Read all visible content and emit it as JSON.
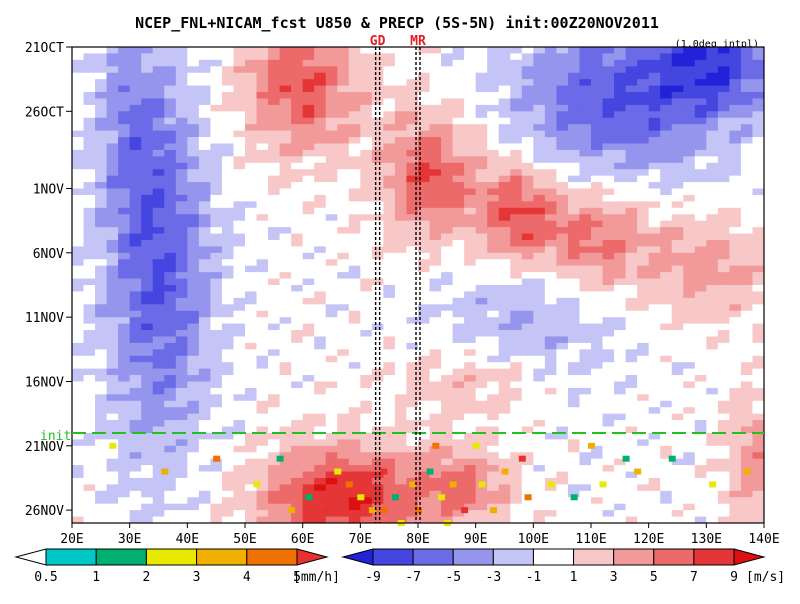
{
  "chart_data": {
    "type": "heatmap",
    "title": "NCEP_FNL+NICAM_fcst U850 & PRECP (5S-5N) init:00Z20NOV2011",
    "subtitle": "(1.0deg intpl)",
    "x_ticks": [
      "20E",
      "30E",
      "40E",
      "50E",
      "60E",
      "70E",
      "80E",
      "90E",
      "100E",
      "110E",
      "120E",
      "130E",
      "140E"
    ],
    "x_values": [
      20,
      30,
      40,
      50,
      60,
      70,
      80,
      90,
      100,
      110,
      120,
      130,
      140
    ],
    "xlim": [
      20,
      140
    ],
    "y_ticks": [
      "21OCT",
      "26OCT",
      "1NOV",
      "6NOV",
      "11NOV",
      "16NOV",
      "21NOV",
      "26NOV"
    ],
    "y_values": [
      0,
      5,
      11,
      16,
      21,
      26,
      31,
      36
    ],
    "ylim": [
      0,
      37
    ],
    "init_label": "init",
    "init_day": 30,
    "markers": [
      {
        "label": "GD",
        "lon": 73
      },
      {
        "label": "MR",
        "lon": 80
      }
    ],
    "u850": {
      "levels": [
        -9,
        -7,
        -5,
        -3,
        -1,
        1,
        3,
        5,
        7,
        9
      ],
      "labels": [
        "-9",
        "-7",
        "-5",
        "-3",
        "-1",
        "1",
        "3",
        "5",
        "7",
        "9"
      ],
      "unit": "[m/s]",
      "colors": [
        "#2222d8",
        "#4545e0",
        "#6b6be8",
        "#9595ee",
        "#c4c4f6",
        "#ffffff",
        "#f8c8c8",
        "#f29a9a",
        "#ec6a6a",
        "#e43636",
        "#dc1010"
      ],
      "fields": [
        {
          "lon": 35,
          "day": 17,
          "amp": -7,
          "sl": 9,
          "sd": 14
        },
        {
          "lon": 30,
          "day": 5,
          "amp": -3,
          "sl": 6,
          "sd": 8
        },
        {
          "lon": 115,
          "day": 4,
          "amp": -7,
          "sl": 18,
          "sd": 6
        },
        {
          "lon": 132,
          "day": 1,
          "amp": -7,
          "sl": 10,
          "sd": 4
        },
        {
          "lon": 100,
          "day": 21,
          "amp": -3,
          "sl": 16,
          "sd": 6
        },
        {
          "lon": 60,
          "day": 3,
          "amp": 7,
          "sl": 10,
          "sd": 5
        },
        {
          "lon": 82,
          "day": 10,
          "amp": 7,
          "sl": 8,
          "sd": 5
        },
        {
          "lon": 97,
          "day": 13,
          "amp": 7,
          "sl": 7,
          "sd": 4
        },
        {
          "lon": 110,
          "day": 15,
          "amp": 6,
          "sl": 10,
          "sd": 4
        },
        {
          "lon": 130,
          "day": 17,
          "amp": 4,
          "sl": 12,
          "sd": 4
        },
        {
          "lon": 67,
          "day": 35,
          "amp": 9,
          "sl": 14,
          "sd": 4
        },
        {
          "lon": 88,
          "day": 34,
          "amp": 5,
          "sl": 8,
          "sd": 3
        },
        {
          "lon": 138,
          "day": 32,
          "amp": 4,
          "sl": 5,
          "sd": 5
        },
        {
          "lon": 90,
          "day": 26,
          "amp": 3,
          "sl": 14,
          "sd": 3
        }
      ]
    },
    "precip": {
      "levels": [
        0.5,
        1,
        2,
        3,
        4,
        5
      ],
      "labels": [
        "0.5",
        "1",
        "2",
        "3",
        "4",
        "5"
      ],
      "unit": "[mm/h]",
      "colors": [
        "#ffffff",
        "#00c8c8",
        "#00b070",
        "#e8e800",
        "#f0b000",
        "#f07000",
        "#e83030"
      ],
      "points": [
        {
          "lon": 27,
          "day": 31,
          "v": 2
        },
        {
          "lon": 36,
          "day": 33,
          "v": 3
        },
        {
          "lon": 45,
          "day": 32,
          "v": 4
        },
        {
          "lon": 52,
          "day": 34,
          "v": 2
        },
        {
          "lon": 58,
          "day": 36,
          "v": 3
        },
        {
          "lon": 61,
          "day": 35,
          "v": 1
        },
        {
          "lon": 64,
          "day": 36,
          "v": 5
        },
        {
          "lon": 68,
          "day": 34,
          "v": 4
        },
        {
          "lon": 70,
          "day": 35,
          "v": 2
        },
        {
          "lon": 72,
          "day": 36,
          "v": 3
        },
        {
          "lon": 74,
          "day": 33,
          "v": 5
        },
        {
          "lon": 76,
          "day": 35,
          "v": 1
        },
        {
          "lon": 77,
          "day": 37,
          "v": 2
        },
        {
          "lon": 79,
          "day": 34,
          "v": 3
        },
        {
          "lon": 80,
          "day": 36,
          "v": 4
        },
        {
          "lon": 82,
          "day": 33,
          "v": 1
        },
        {
          "lon": 84,
          "day": 35,
          "v": 2
        },
        {
          "lon": 86,
          "day": 34,
          "v": 3
        },
        {
          "lon": 88,
          "day": 36,
          "v": 5
        },
        {
          "lon": 91,
          "day": 34,
          "v": 2
        },
        {
          "lon": 95,
          "day": 33,
          "v": 3
        },
        {
          "lon": 99,
          "day": 35,
          "v": 4
        },
        {
          "lon": 103,
          "day": 34,
          "v": 2
        },
        {
          "lon": 107,
          "day": 35,
          "v": 1
        },
        {
          "lon": 112,
          "day": 34,
          "v": 2
        },
        {
          "lon": 118,
          "day": 33,
          "v": 3
        },
        {
          "lon": 124,
          "day": 32,
          "v": 1
        },
        {
          "lon": 131,
          "day": 34,
          "v": 2
        },
        {
          "lon": 137,
          "day": 33,
          "v": 3
        },
        {
          "lon": 83,
          "day": 31,
          "v": 4
        },
        {
          "lon": 90,
          "day": 31,
          "v": 2
        },
        {
          "lon": 110,
          "day": 31,
          "v": 3
        },
        {
          "lon": 116,
          "day": 32,
          "v": 1
        },
        {
          "lon": 66,
          "day": 33,
          "v": 2
        },
        {
          "lon": 56,
          "day": 32,
          "v": 1
        },
        {
          "lon": 98,
          "day": 32,
          "v": 5
        },
        {
          "lon": 93,
          "day": 36,
          "v": 3
        },
        {
          "lon": 74,
          "day": 36,
          "v": 4
        },
        {
          "lon": 85,
          "day": 37,
          "v": 2
        }
      ]
    }
  }
}
